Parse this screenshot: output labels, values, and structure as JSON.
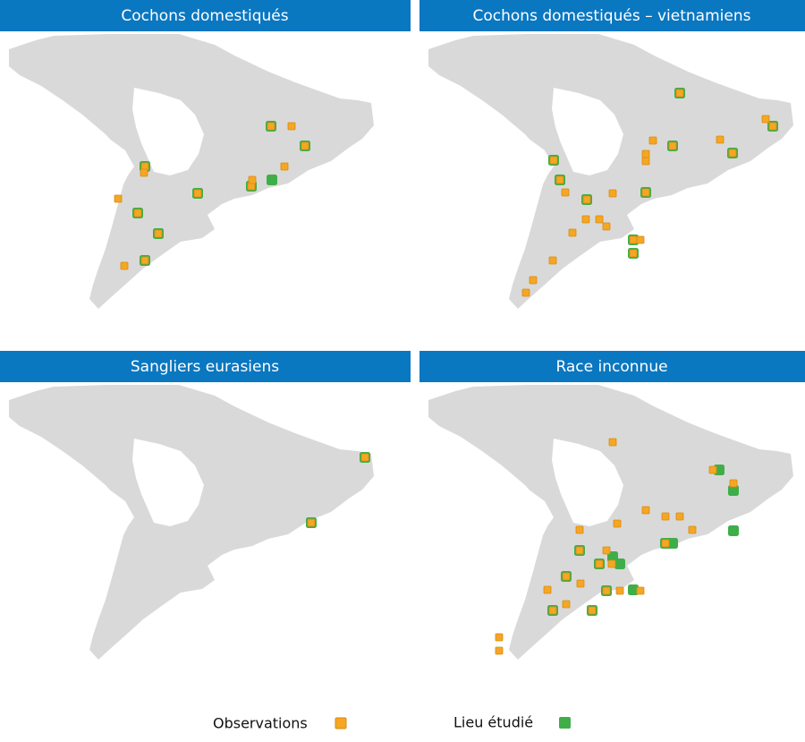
{
  "panels": [
    {
      "title": "Cochons domestiqués"
    },
    {
      "title": "Cochons domestiqués – vietnamiens"
    },
    {
      "title": "Sangliers eurasiens"
    },
    {
      "title": "Race inconnue"
    }
  ],
  "legend": [
    {
      "label": "Observations"
    },
    {
      "label": "Lieu étudié"
    }
  ]
}
